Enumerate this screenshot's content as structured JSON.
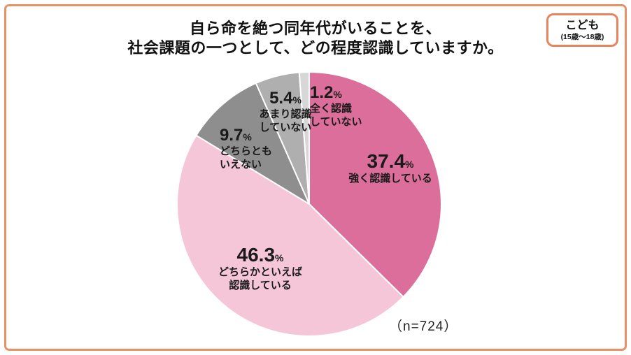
{
  "frame": {
    "border_color": "#E89169"
  },
  "header": {
    "title_line1": "自ら命を絶つ同年代がいることを、",
    "title_line2": "社会課題の一つとして、どの程度認識していますか。"
  },
  "group_badge": {
    "label": "こども",
    "sublabel": "(15歳〜18歳)",
    "border_color": "#E8845B"
  },
  "chart_data": {
    "type": "pie",
    "title": "自ら命を絶つ同年代がいることを、社会課題の一つとして、どの程度認識していますか。",
    "sample_note": "（n=724）",
    "start_angle_deg": 0,
    "direction": "clockwise",
    "legend_position": "labels-on-chart",
    "slices": [
      {
        "label": "強く認識している",
        "value_pct": 37.4,
        "value_display": "37.4",
        "unit": "%",
        "line1": "強く認識している",
        "line2": "",
        "color": "#DC6E9B"
      },
      {
        "label": "どちらかといえば認識している",
        "value_pct": 46.3,
        "value_display": "46.3",
        "unit": "%",
        "line1": "どちらかといえば",
        "line2": "認識している",
        "color": "#F5C5D8"
      },
      {
        "label": "どちらともいえない",
        "value_pct": 9.7,
        "value_display": "9.7",
        "unit": "%",
        "line1": "どちらとも",
        "line2": "いえない",
        "color": "#8E8E8E"
      },
      {
        "label": "あまり認識していない",
        "value_pct": 5.4,
        "value_display": "5.4",
        "unit": "%",
        "line1": "あまり認識",
        "line2": "していない",
        "color": "#AFAFAF"
      },
      {
        "label": "全く認識していない",
        "value_pct": 1.2,
        "value_display": "1.2",
        "unit": "%",
        "line1": "全く認識",
        "line2": "していない",
        "color": "#D7D7D7"
      }
    ]
  }
}
